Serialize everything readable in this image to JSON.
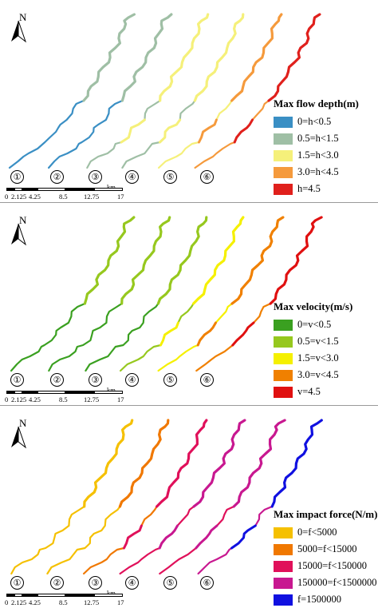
{
  "north_label": "N",
  "scenarios": [
    "①",
    "②",
    "③",
    "④",
    "⑤",
    "⑥"
  ],
  "scale_bar": {
    "ticks": [
      "0",
      "2.125",
      "4.25",
      "8.5",
      "12.75",
      "17"
    ],
    "unit": "km"
  },
  "panels": [
    {
      "legend_title": "Max flow depth(m)",
      "classes": [
        {
          "label": "0=h<0.5",
          "color": "#3a8fc4"
        },
        {
          "label": "0.5=h<1.5",
          "color": "#9fbfa5"
        },
        {
          "label": "1.5=h<3.0",
          "color": "#f5f07a"
        },
        {
          "label": "3.0=h<4.5",
          "color": "#f59a3c"
        },
        {
          "label": "h=4.5",
          "color": "#e0201c"
        }
      ],
      "scenario_class_levels": [
        1,
        1,
        2,
        2,
        3,
        4
      ]
    },
    {
      "legend_title": "Max velocity(m/s)",
      "classes": [
        {
          "label": "0=v<0.5",
          "color": "#3aa020"
        },
        {
          "label": "0.5=v<1.5",
          "color": "#96c81e"
        },
        {
          "label": "1.5=v<3.0",
          "color": "#f5f000"
        },
        {
          "label": "3.0=v<4.5",
          "color": "#f08000"
        },
        {
          "label": "v=4.5",
          "color": "#e01010"
        }
      ],
      "scenario_class_levels": [
        1,
        1,
        1,
        2,
        3,
        4
      ]
    },
    {
      "legend_title": "Max impact force(N/m)",
      "classes": [
        {
          "label": "0=f<5000",
          "color": "#f5c000"
        },
        {
          "label": "5000=f<15000",
          "color": "#f07800"
        },
        {
          "label": "15000=f<150000",
          "color": "#e0105a"
        },
        {
          "label": "150000=f<1500000",
          "color": "#c81890"
        },
        {
          "label": "f=1500000",
          "color": "#1010e0"
        }
      ],
      "scenario_class_levels": [
        0,
        1,
        2,
        3,
        3,
        4
      ]
    }
  ]
}
